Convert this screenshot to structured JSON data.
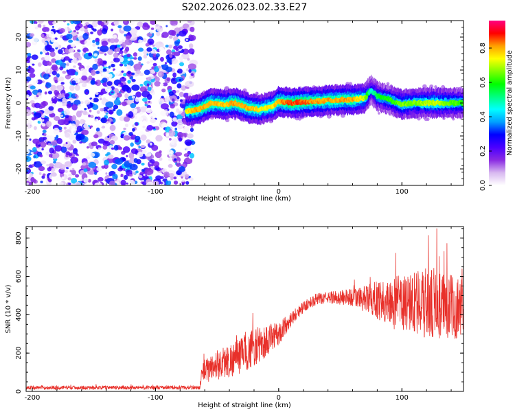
{
  "title": "S202.2026.023.02.33.E27",
  "chart_data": [
    {
      "type": "heatmap",
      "xlabel": "Height of straight line (km)",
      "ylabel": "Frequency (Hz)",
      "xlim": [
        -205,
        150
      ],
      "ylim": [
        -25,
        25
      ],
      "xticks": [
        -200,
        -100,
        0,
        100
      ],
      "yticks": [
        20,
        10,
        0,
        -10,
        -20
      ],
      "colorbar": {
        "label": "Normalized spectral amplitude",
        "range": [
          0,
          0.96
        ],
        "ticks": [
          0.0,
          0.2,
          0.4,
          0.6,
          0.8
        ],
        "colors": [
          "#ffffff",
          "#d8b8f0",
          "#8a2be2",
          "#4b00ff",
          "#0000ff",
          "#00a0ff",
          "#00ffff",
          "#00ff80",
          "#00ff00",
          "#80ff00",
          "#ffff00",
          "#ffa000",
          "#ff0000",
          "#ff0080"
        ]
      },
      "noise_region_x": [
        -205,
        -72
      ],
      "ridge": {
        "x": [
          -75,
          -65,
          -55,
          -45,
          -35,
          -25,
          -15,
          -5,
          0,
          10,
          20,
          30,
          40,
          50,
          60,
          70,
          75,
          80,
          90,
          100,
          110,
          120,
          130,
          140,
          150
        ],
        "freq": [
          -2.5,
          -2,
          0,
          -0.5,
          0,
          -1.5,
          -2,
          -1,
          0.5,
          0,
          0.3,
          0.5,
          0.8,
          1,
          1,
          1.5,
          4,
          2,
          1,
          -0.5,
          0,
          0,
          0,
          0,
          0
        ],
        "amplitude": [
          0.75,
          0.8,
          0.8,
          0.78,
          0.8,
          0.8,
          0.75,
          0.75,
          0.8,
          0.85,
          0.85,
          0.8,
          0.8,
          0.8,
          0.8,
          0.7,
          0.45,
          0.55,
          0.6,
          0.65,
          0.65,
          0.7,
          0.7,
          0.65,
          0.6
        ]
      }
    },
    {
      "type": "line",
      "xlabel": "Height of straight line (km)",
      "ylabel": "SNR (10 * v/v)",
      "xlim": [
        -205,
        150
      ],
      "ylim": [
        0,
        860
      ],
      "xticks": [
        -200,
        -100,
        0,
        100
      ],
      "yticks": [
        0,
        200,
        400,
        600,
        800
      ],
      "series": [
        {
          "name": "SNR",
          "color": "#e8302a",
          "x": [
            -205,
            -150,
            -100,
            -64,
            -62,
            -50,
            -40,
            -30,
            -20,
            -10,
            0,
            10,
            20,
            30,
            40,
            50,
            60,
            70,
            80,
            90,
            100,
            110,
            120,
            130,
            140,
            150
          ],
          "mean": [
            20,
            20,
            20,
            20,
            100,
            140,
            160,
            190,
            230,
            260,
            300,
            380,
            440,
            480,
            490,
            490,
            490,
            480,
            480,
            460,
            460,
            460,
            460,
            450,
            440,
            440
          ],
          "spread": [
            10,
            10,
            10,
            10,
            60,
            80,
            90,
            100,
            100,
            90,
            60,
            40,
            30,
            30,
            30,
            40,
            50,
            70,
            100,
            130,
            150,
            170,
            190,
            190,
            170,
            160
          ]
        }
      ]
    }
  ]
}
